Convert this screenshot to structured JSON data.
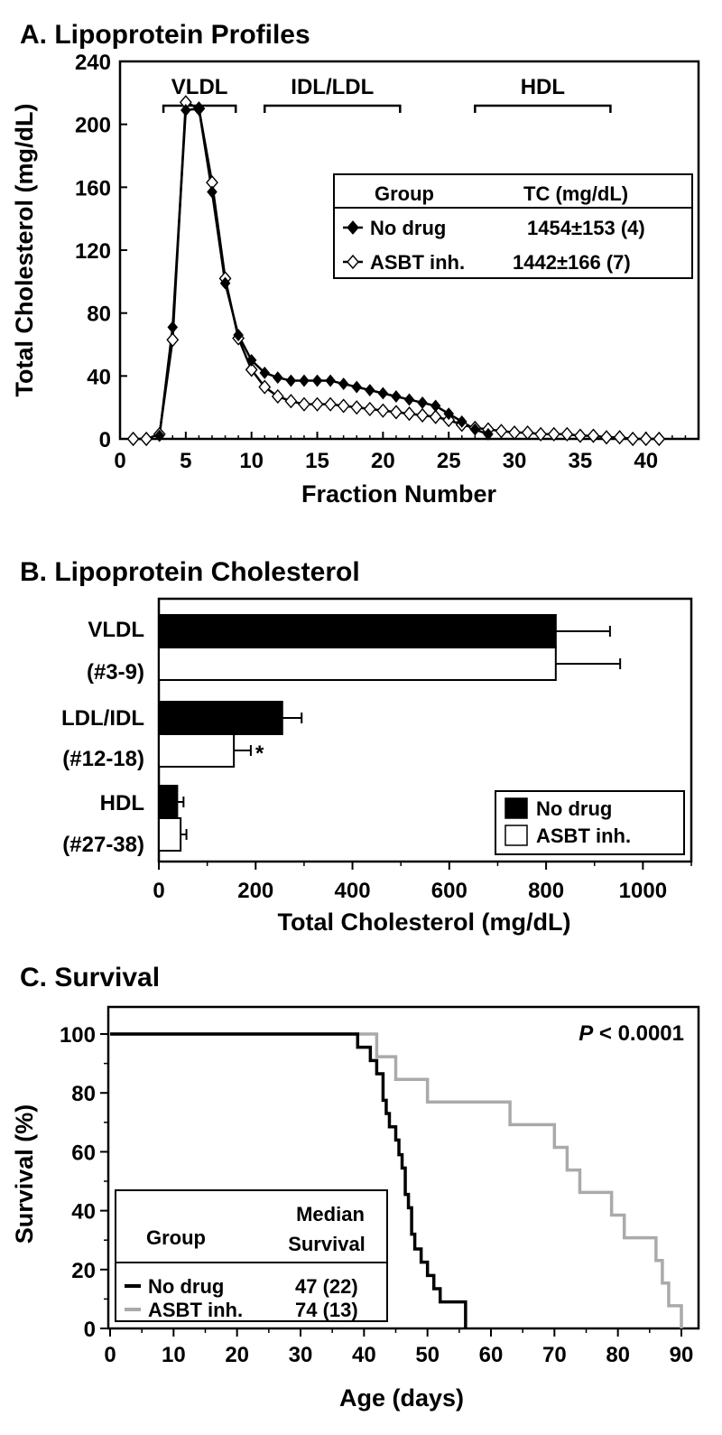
{
  "chart_data": [
    {
      "panel": "A",
      "type": "line",
      "title": "A. Lipoprotein Profiles",
      "xlabel": "Fraction Number",
      "ylabel": "Total Cholesterol (mg/dL)",
      "xlim": [
        0,
        44
      ],
      "ylim": [
        0,
        240
      ],
      "xticks": [
        0,
        5,
        10,
        15,
        20,
        25,
        30,
        35,
        40
      ],
      "yticks": [
        0,
        40,
        80,
        120,
        160,
        200,
        240
      ],
      "grid": false,
      "regions": [
        {
          "label": "VLDL",
          "from": 3.3,
          "to": 8.8
        },
        {
          "label": "IDL/LDL",
          "from": 11.0,
          "to": 21.3
        },
        {
          "label": "HDL",
          "from": 27.0,
          "to": 37.3
        }
      ],
      "legend": {
        "placement": "right",
        "header_group": "Group",
        "header_value": "TC (mg/dL)",
        "rows": [
          {
            "name": "No drug",
            "value": "1454±153 (4)"
          },
          {
            "name": "ASBT inh.",
            "value": "1442±166 (7)"
          }
        ]
      },
      "series": [
        {
          "name": "No drug",
          "marker": "filled-diamond",
          "color": "#000000",
          "x": [
            3,
            4,
            5,
            6,
            7,
            8,
            9,
            10,
            11,
            12,
            13,
            14,
            15,
            16,
            17,
            18,
            19,
            20,
            21,
            22,
            23,
            24,
            25,
            26,
            27,
            28
          ],
          "y": [
            2,
            71,
            209,
            210,
            157,
            99,
            66,
            50,
            42,
            39,
            37,
            37,
            37,
            37,
            35,
            33,
            31,
            29,
            27,
            25,
            23,
            21,
            16,
            11,
            6,
            3
          ]
        },
        {
          "name": "ASBT inh.",
          "marker": "open-diamond",
          "color": "#000000",
          "x": [
            1,
            2,
            3,
            4,
            5,
            6,
            7,
            8,
            9,
            10,
            11,
            12,
            13,
            14,
            15,
            16,
            17,
            18,
            19,
            20,
            21,
            22,
            23,
            24,
            25,
            26,
            27,
            28,
            29,
            30,
            31,
            32,
            33,
            34,
            35,
            36,
            37,
            38,
            39,
            40,
            41
          ],
          "y": [
            0,
            0,
            3,
            63,
            214,
            210,
            163,
            102,
            64,
            44,
            33,
            27,
            24,
            22,
            22,
            22,
            21,
            20,
            19,
            18,
            17,
            16,
            15,
            14,
            12,
            9,
            7,
            6,
            5,
            4,
            4,
            3,
            3,
            3,
            2,
            2,
            1,
            1,
            0,
            0,
            0
          ]
        }
      ]
    },
    {
      "panel": "B",
      "type": "bar",
      "orientation": "horizontal",
      "title": "B. Lipoprotein Cholesterol",
      "xlabel": "Total Cholesterol (mg/dL)",
      "xlim": [
        0,
        1100
      ],
      "xticks": [
        0,
        200,
        400,
        600,
        800,
        1000
      ],
      "categories": [
        {
          "line1": "VLDL",
          "line2": "(#3-9)"
        },
        {
          "line1": "LDL/IDL",
          "line2": "(#12-18)"
        },
        {
          "line1": "HDL",
          "line2": "(#27-38)"
        }
      ],
      "legend": {
        "placement": "bottom-right",
        "entries": [
          "No drug",
          "ASBT inh."
        ]
      },
      "series": [
        {
          "name": "No drug",
          "fill": "#000000",
          "values": [
            820,
            255,
            38
          ],
          "errors": [
            112,
            40,
            13
          ]
        },
        {
          "name": "ASBT inh.",
          "fill": "#ffffff",
          "values": [
            820,
            155,
            45
          ],
          "errors": [
            133,
            35,
            12
          ]
        }
      ],
      "annotations": [
        {
          "text": "*",
          "category_index": 1,
          "series": "ASBT inh."
        }
      ]
    },
    {
      "panel": "C",
      "type": "line",
      "style": "step",
      "title": "C. Survival",
      "xlabel": "Age (days)",
      "ylabel": "Survival (%)",
      "xlim": [
        0,
        92
      ],
      "ylim": [
        0,
        100
      ],
      "xticks": [
        0,
        10,
        20,
        30,
        40,
        50,
        60,
        70,
        80,
        90
      ],
      "yticks": [
        0,
        20,
        40,
        60,
        80,
        100
      ],
      "pvalue": {
        "prefix": "P",
        "text": " < 0.0001"
      },
      "legend": {
        "placement": "bottom-left",
        "header_group": "Group",
        "header_value_line1": "Median",
        "header_value_line2": "Survival",
        "rows": [
          {
            "name": "No drug",
            "value": "47 (22)"
          },
          {
            "name": "ASBT inh.",
            "value": "74 (13)"
          }
        ]
      },
      "series": [
        {
          "name": "No drug",
          "color": "#000000",
          "x": [
            0,
            39,
            41,
            42,
            43,
            43.5,
            44,
            45,
            45.5,
            46,
            46.5,
            47,
            47.5,
            48,
            49,
            50,
            51,
            52,
            53,
            56
          ],
          "y": [
            100,
            95.5,
            91,
            86.5,
            77.5,
            73,
            68.5,
            64,
            59,
            54.5,
            45.5,
            41,
            32,
            27,
            22.5,
            18,
            13.5,
            9,
            9,
            0
          ]
        },
        {
          "name": "ASBT inh.",
          "color": "#aaaaaa",
          "x": [
            0,
            42,
            45,
            50,
            63,
            70,
            72,
            74,
            79,
            81,
            86,
            87,
            88,
            89,
            90
          ],
          "y": [
            100,
            92.3,
            84.6,
            76.9,
            69.2,
            61.5,
            53.8,
            46.2,
            38.5,
            30.8,
            23.1,
            15.4,
            7.7,
            7.7,
            0
          ]
        }
      ]
    }
  ]
}
